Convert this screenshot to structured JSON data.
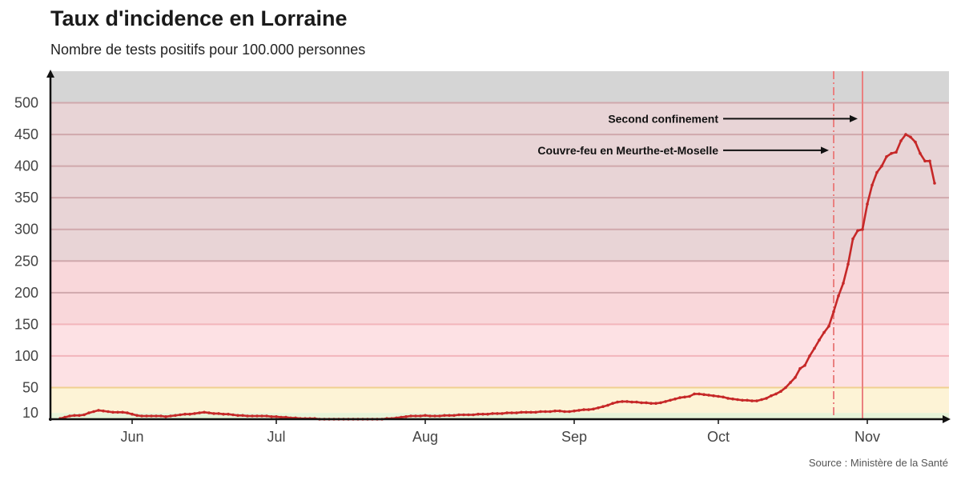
{
  "title": "Taux d'incidence en Lorraine",
  "subtitle": "Nombre de tests positifs pour 100.000 personnes",
  "source": "Source : Ministère de la Santé",
  "colors": {
    "line": "#c62828",
    "band_grey": "#d5d5d5",
    "band_maroon": "#e8d4d6",
    "band_red": "#f9d7da",
    "band_pink": "#fde1e4",
    "band_yellow": "#fdf3d6",
    "band_green": "#e6f3d8",
    "annot_line": "#ea8080",
    "gridline": "#d0a8ac"
  },
  "chart_data": {
    "type": "line",
    "title": "Taux d'incidence en Lorraine",
    "subtitle": "Nombre de tests positifs pour 100.000 personnes",
    "ylim": [
      0,
      550
    ],
    "yticks": [
      10,
      50,
      100,
      150,
      200,
      250,
      300,
      350,
      400,
      450,
      500
    ],
    "gridlines": [
      50,
      100,
      150,
      200,
      250,
      300,
      350,
      400,
      450,
      500
    ],
    "bands": [
      {
        "from": 0,
        "to": 10,
        "color": "#e6f3d8"
      },
      {
        "from": 10,
        "to": 50,
        "color": "#fdf3d6"
      },
      {
        "from": 50,
        "to": 150,
        "color": "#fde1e4"
      },
      {
        "from": 150,
        "to": 250,
        "color": "#f9d7da"
      },
      {
        "from": 250,
        "to": 500,
        "color": "#e8d4d6"
      },
      {
        "from": 500,
        "to": 550,
        "color": "#d5d5d5"
      }
    ],
    "x_start": "2020-05-15",
    "x_end": "2020-11-15",
    "xticks": [
      {
        "label": "Jun",
        "day": 17
      },
      {
        "label": "Jul",
        "day": 47
      },
      {
        "label": "Aug",
        "day": 78
      },
      {
        "label": "Sep",
        "day": 109
      },
      {
        "label": "Oct",
        "day": 139
      },
      {
        "label": "Nov",
        "day": 170
      }
    ],
    "annotations": [
      {
        "label": "Second confinement",
        "day": 169,
        "value": 475,
        "style": "solid"
      },
      {
        "label": "Couvre-feu en Meurthe-et-Moselle",
        "day": 163,
        "value": 425,
        "style": "dashdot"
      }
    ],
    "series": [
      {
        "name": "Taux d'incidence",
        "start_day": 2,
        "values": [
          1,
          3,
          5,
          6,
          6,
          7,
          10,
          12,
          14,
          13,
          12,
          11,
          11,
          11,
          10,
          8,
          6,
          5,
          5,
          5,
          5,
          5,
          4,
          5,
          6,
          7,
          8,
          8,
          9,
          10,
          11,
          10,
          9,
          9,
          8,
          8,
          7,
          6,
          6,
          5,
          5,
          5,
          5,
          5,
          4,
          4,
          3,
          3,
          2,
          2,
          1,
          1,
          1,
          1,
          0,
          0,
          0,
          0,
          0,
          0,
          0,
          0,
          0,
          0,
          0,
          0,
          0,
          0,
          1,
          1,
          2,
          3,
          4,
          5,
          5,
          5,
          6,
          5,
          5,
          5,
          6,
          6,
          6,
          7,
          7,
          7,
          7,
          8,
          8,
          8,
          9,
          9,
          9,
          10,
          10,
          10,
          11,
          11,
          11,
          11,
          12,
          12,
          12,
          13,
          13,
          12,
          12,
          13,
          14,
          15,
          15,
          16,
          18,
          20,
          22,
          25,
          27,
          28,
          28,
          27,
          27,
          26,
          26,
          25,
          25,
          26,
          28,
          30,
          32,
          34,
          35,
          36,
          40,
          40,
          39,
          38,
          37,
          36,
          35,
          33,
          32,
          31,
          30,
          30,
          29,
          29,
          31,
          33,
          37,
          40,
          44,
          50,
          58,
          66,
          80,
          85,
          100,
          112,
          125,
          137,
          147,
          170,
          195,
          215,
          245,
          285,
          298,
          300,
          340,
          370,
          390,
          400,
          415,
          420,
          422,
          440,
          450,
          446,
          438,
          420,
          408,
          408,
          373
        ]
      }
    ]
  }
}
